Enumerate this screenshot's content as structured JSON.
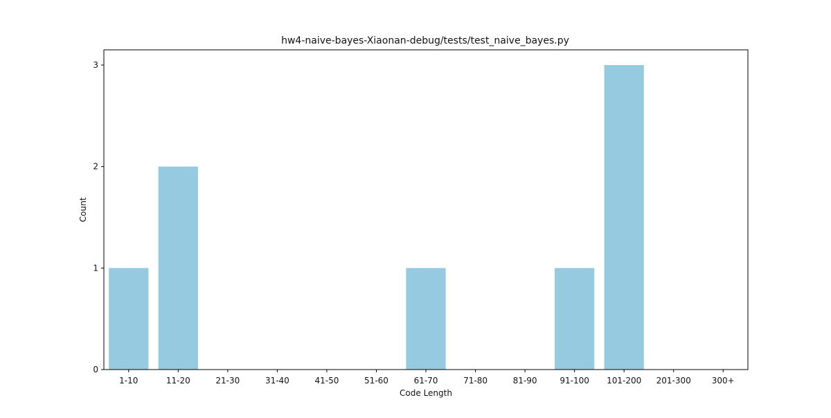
{
  "chart_data": {
    "type": "bar",
    "title": "hw4-naive-bayes-Xiaonan-debug/tests/test_naive_bayes.py",
    "xlabel": "Code Length",
    "ylabel": "Count",
    "categories": [
      "1-10",
      "11-20",
      "21-30",
      "31-40",
      "41-50",
      "51-60",
      "61-70",
      "71-80",
      "81-90",
      "91-100",
      "101-200",
      "201-300",
      "300+"
    ],
    "values": [
      1,
      2,
      0,
      0,
      0,
      0,
      1,
      0,
      0,
      1,
      3,
      0,
      0
    ],
    "ylim": [
      0,
      3.15
    ],
    "yticks": [
      0,
      1,
      2,
      3
    ],
    "grid": false,
    "bar_color": "#96CAE0",
    "axis_color": "#000000"
  }
}
